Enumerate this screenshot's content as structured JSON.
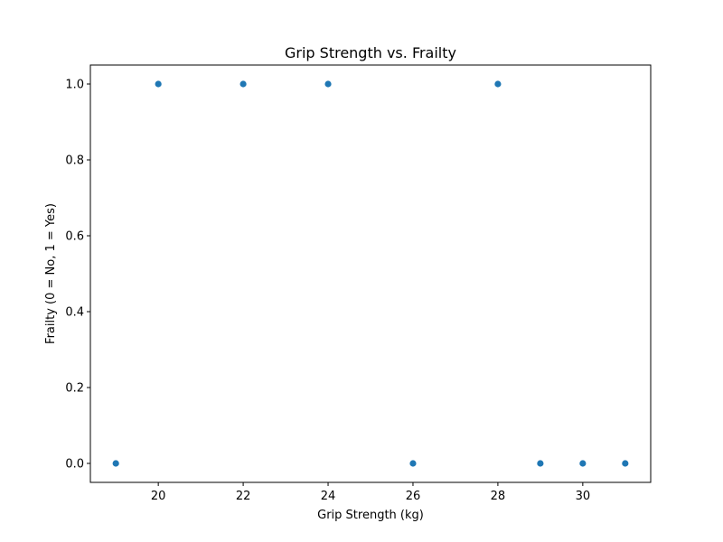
{
  "chart_data": {
    "type": "scatter",
    "title": "Grip Strength vs. Frailty",
    "xlabel": "Grip Strength (kg)",
    "ylabel": "Frailty (0 = No, 1 = Yes)",
    "x": [
      19,
      20,
      22,
      24,
      26,
      28,
      29,
      30,
      31
    ],
    "y": [
      0,
      1,
      1,
      1,
      0,
      1,
      0,
      0,
      0
    ],
    "xlim": [
      18.4,
      31.6
    ],
    "ylim": [
      -0.05,
      1.05
    ],
    "xticks": [
      20,
      22,
      24,
      26,
      28,
      30
    ],
    "yticks": [
      0.0,
      0.2,
      0.4,
      0.6,
      0.8,
      1.0
    ],
    "xtick_labels": [
      "20",
      "22",
      "24",
      "26",
      "28",
      "30"
    ],
    "ytick_labels": [
      "0.0",
      "0.2",
      "0.4",
      "0.6",
      "0.8",
      "1.0"
    ],
    "grid": false,
    "legend": "none",
    "marker_color": "#1f77b4"
  }
}
